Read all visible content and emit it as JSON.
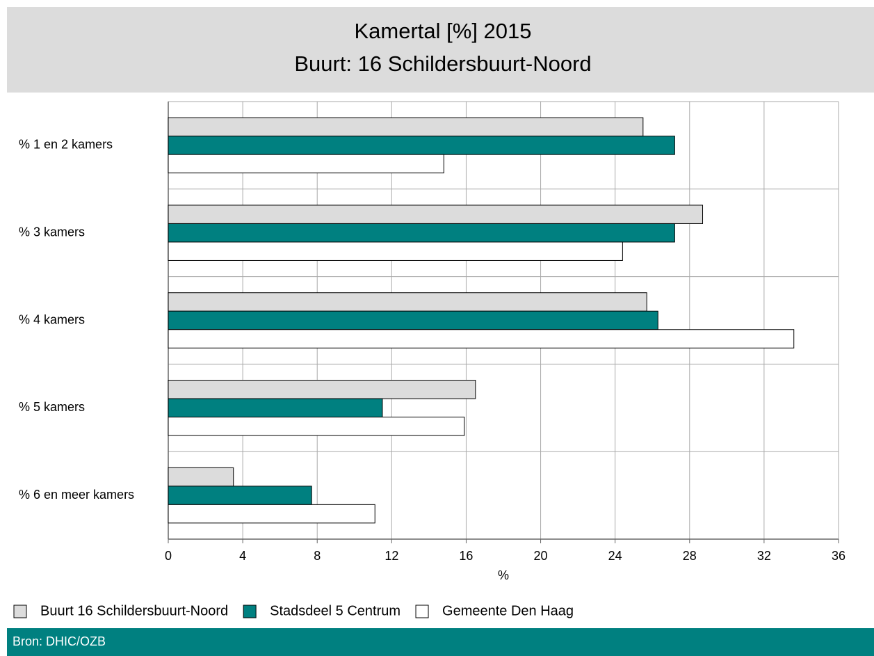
{
  "chart_data": {
    "type": "hbar",
    "title": "Kamertal [%] 2015",
    "subtitle": "Buurt: 16 Schildersbuurt-Noord",
    "x_label": "%",
    "source": "Bron: DHIC/OZB",
    "categories": [
      "% 1 en 2 kamers",
      "% 3 kamers",
      "% 4 kamers",
      "% 5 kamers",
      "% 6 en meer kamers"
    ],
    "series": [
      {
        "name": "Buurt 16 Schildersbuurt-Noord",
        "color": "#dcdcdc",
        "values": [
          25.5,
          28.7,
          25.7,
          16.5,
          3.5
        ]
      },
      {
        "name": "Stadsdeel 5 Centrum",
        "color": "#008080",
        "values": [
          27.2,
          27.2,
          26.3,
          11.5,
          7.7
        ]
      },
      {
        "name": "Gemeente Den Haag",
        "color": "#ffffff",
        "values": [
          14.8,
          24.4,
          33.6,
          15.9,
          11.1
        ]
      }
    ],
    "xlim": [
      0,
      36
    ],
    "xticks": [
      0,
      4,
      8,
      12,
      16,
      20,
      24,
      28,
      32,
      36
    ],
    "grid": true,
    "legend": "bottom"
  }
}
